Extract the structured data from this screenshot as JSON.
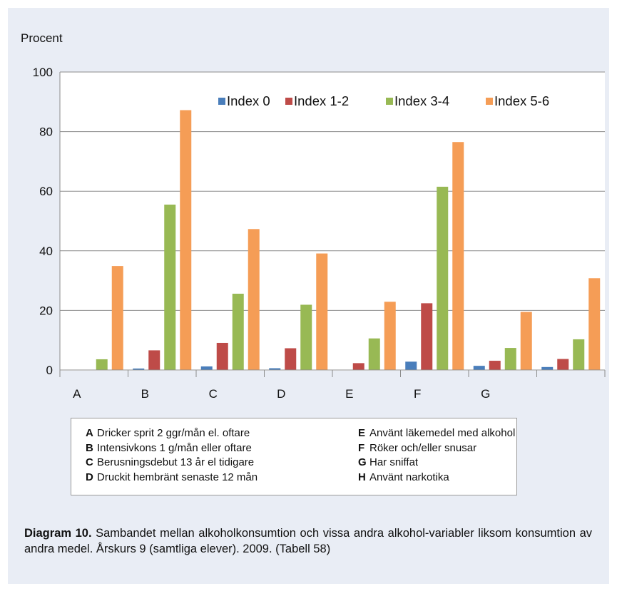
{
  "chart_data": {
    "type": "bar",
    "ylabel": "Procent",
    "ylim": [
      0,
      100
    ],
    "yticks": [
      0,
      20,
      40,
      60,
      80,
      100
    ],
    "grid": true,
    "legend_position": "top-right",
    "categories": [
      "A",
      "B",
      "C",
      "D",
      "E",
      "F",
      "G",
      ""
    ],
    "series": [
      {
        "name": "Index 0",
        "color": "#4a7ebb",
        "values": [
          0,
          0.5,
          1.2,
          0.6,
          0,
          2.8,
          1.4,
          1.0
        ]
      },
      {
        "name": "Index 1-2",
        "color": "#be4b48",
        "values": [
          0,
          6.6,
          9.1,
          7.3,
          2.3,
          22.4,
          3.1,
          3.7
        ]
      },
      {
        "name": "Index 3-4",
        "color": "#98b954",
        "values": [
          3.6,
          55.5,
          25.6,
          21.9,
          10.6,
          61.5,
          7.4,
          10.3
        ]
      },
      {
        "name": "Index 5-6",
        "color": "#f59d56",
        "values": [
          34.9,
          87.2,
          47.3,
          39.1,
          22.9,
          76.5,
          19.5,
          30.8
        ]
      }
    ]
  },
  "key": {
    "left": [
      {
        "letter": "A",
        "text": "Dricker sprit 2 ggr/mån el. oftare"
      },
      {
        "letter": "B",
        "text": "Intensivkons 1 g/mån eller oftare"
      },
      {
        "letter": "C",
        "text": "Berusningsdebut 13 år el tidigare"
      },
      {
        "letter": "D",
        "text": "Druckit hembränt senaste 12 mån"
      }
    ],
    "right": [
      {
        "letter": "E",
        "text": "Använt läkemedel med alkohol"
      },
      {
        "letter": "F",
        "text": "Röker och/eller snusar"
      },
      {
        "letter": "G",
        "text": "Har sniffat"
      },
      {
        "letter": "H",
        "text": "Använt narkotika"
      }
    ]
  },
  "caption": {
    "title": "Diagram 10.",
    "text": " Sambandet mellan alkoholkonsumtion och vissa andra alkohol-variabler liksom konsumtion av andra medel. Årskurs 9 (samtliga elever). 2009. (Tabell 58)"
  }
}
